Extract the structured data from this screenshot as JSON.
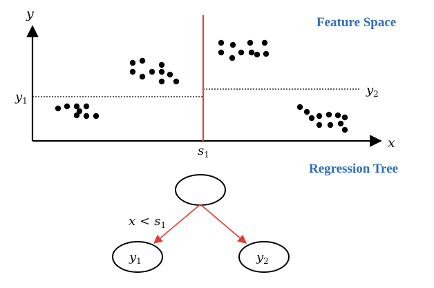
{
  "feature_space": {
    "title": "Feature Space",
    "x_axis_label": "x",
    "y_axis_label": "y",
    "split_label": {
      "base": "s",
      "sub": "1"
    },
    "y1_label": {
      "base": "y",
      "sub": "1"
    },
    "y2_label": {
      "base": "y",
      "sub": "2"
    },
    "split_color": "#e33b2e",
    "point_color": "#000000"
  },
  "regression_tree": {
    "title": "Regression Tree",
    "edge_label": {
      "lhs": "x",
      "op": "<",
      "base": "s",
      "sub": "1"
    },
    "left_leaf": {
      "base": "y",
      "sub": "1"
    },
    "right_leaf": {
      "base": "y",
      "sub": "2"
    },
    "edge_color": "#e33b2e"
  },
  "colors": {
    "heading": "#2f6fb8",
    "axis": "#000000"
  }
}
